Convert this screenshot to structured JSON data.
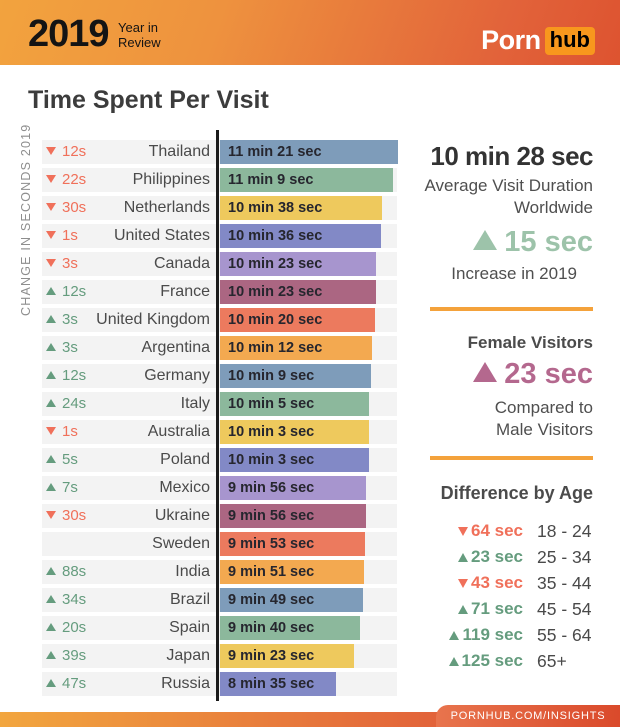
{
  "header": {
    "year": "2019",
    "subtitle_line1": "Year in",
    "subtitle_line2": "Review",
    "logo_porn": "Porn",
    "logo_hub": "hub"
  },
  "title": "Time Spent Per Visit",
  "chart_data": {
    "type": "bar",
    "title": "Time Spent Per Visit",
    "xlabel": "Average visit duration",
    "axis_note": "CHANGE IN SECONDS 2019",
    "rows": [
      {
        "country": "Thailand",
        "label": "11 min 21 sec",
        "seconds": 681,
        "change": "12s",
        "direction": "down"
      },
      {
        "country": "Philippines",
        "label": "11 min 9 sec",
        "seconds": 669,
        "change": "22s",
        "direction": "down"
      },
      {
        "country": "Netherlands",
        "label": "10 min 38 sec",
        "seconds": 638,
        "change": "30s",
        "direction": "down"
      },
      {
        "country": "United States",
        "label": "10 min 36 sec",
        "seconds": 636,
        "change": "1s",
        "direction": "down"
      },
      {
        "country": "Canada",
        "label": "10 min 23 sec",
        "seconds": 623,
        "change": "3s",
        "direction": "down"
      },
      {
        "country": "France",
        "label": "10 min 23 sec",
        "seconds": 623,
        "change": "12s",
        "direction": "up"
      },
      {
        "country": "United Kingdom",
        "label": "10 min 20 sec",
        "seconds": 620,
        "change": "3s",
        "direction": "up"
      },
      {
        "country": "Argentina",
        "label": "10 min 12 sec",
        "seconds": 612,
        "change": "3s",
        "direction": "up"
      },
      {
        "country": "Germany",
        "label": "10 min 9 sec",
        "seconds": 609,
        "change": "12s",
        "direction": "up"
      },
      {
        "country": "Italy",
        "label": "10 min 5 sec",
        "seconds": 605,
        "change": "24s",
        "direction": "up"
      },
      {
        "country": "Australia",
        "label": "10 min 3 sec",
        "seconds": 603,
        "change": "1s",
        "direction": "down"
      },
      {
        "country": "Poland",
        "label": "10 min 3 sec",
        "seconds": 603,
        "change": "5s",
        "direction": "up"
      },
      {
        "country": "Mexico",
        "label": "9 min 56 sec",
        "seconds": 596,
        "change": "7s",
        "direction": "up"
      },
      {
        "country": "Ukraine",
        "label": "9 min 56 sec",
        "seconds": 596,
        "change": "30s",
        "direction": "down"
      },
      {
        "country": "Sweden",
        "label": "9 min 53 sec",
        "seconds": 593,
        "change": "",
        "direction": ""
      },
      {
        "country": "India",
        "label": "9 min 51 sec",
        "seconds": 591,
        "change": "88s",
        "direction": "up"
      },
      {
        "country": "Brazil",
        "label": "9 min 49 sec",
        "seconds": 589,
        "change": "34s",
        "direction": "up"
      },
      {
        "country": "Spain",
        "label": "9 min 40 sec",
        "seconds": 580,
        "change": "20s",
        "direction": "up"
      },
      {
        "country": "Japan",
        "label": "9 min 23 sec",
        "seconds": 563,
        "change": "39s",
        "direction": "up"
      },
      {
        "country": "Russia",
        "label": "8 min 35 sec",
        "seconds": 515,
        "change": "47s",
        "direction": "up"
      }
    ]
  },
  "worldwide": {
    "value": "10 min 28 sec",
    "desc_line1": "Average Visit Duration",
    "desc_line2": "Worldwide",
    "change": "15 sec",
    "change_desc": "Increase in 2019"
  },
  "female": {
    "title": "Female Visitors",
    "change": "23 sec",
    "desc_line1": "Compared to",
    "desc_line2": "Male Visitors"
  },
  "age": {
    "title": "Difference by Age",
    "rows": [
      {
        "change": "64 sec",
        "direction": "down",
        "range": "18 - 24"
      },
      {
        "change": "23 sec",
        "direction": "up",
        "range": "25 - 34"
      },
      {
        "change": "43 sec",
        "direction": "down",
        "range": "35 - 44"
      },
      {
        "change": "71 sec",
        "direction": "up",
        "range": "45 - 54"
      },
      {
        "change": "119 sec",
        "direction": "up",
        "range": "55 - 64"
      },
      {
        "change": "125 sec",
        "direction": "up",
        "range": "65+"
      }
    ]
  },
  "footer": {
    "ribbon": "PORNHUB.COM/INSIGHTS"
  },
  "colors": {
    "bar_palette": [
      "#7e9cba",
      "#8cb89c",
      "#eec95d",
      "#8289c6",
      "#a795ce",
      "#ab6682",
      "#ec7a5e",
      "#f3a950"
    ],
    "up_green": "#659c7e",
    "down_red": "#f0705a",
    "divider_orange": "#f4a23b",
    "worldwide_up_green": "#9dc3aa",
    "female_mauve": "#b4688e",
    "hub_orange": "#f8971d"
  }
}
